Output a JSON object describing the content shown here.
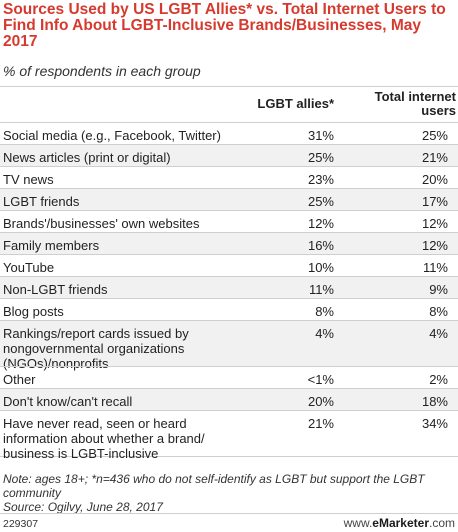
{
  "chart_data": {
    "type": "table",
    "title": "Sources Used by US LGBT Allies* vs. Total Internet Users to Find Info About LGBT-Inclusive Brands/Businesses, May 2017",
    "subtitle": "% of respondents in each group",
    "columns": [
      "LGBT allies*",
      "Total internet users"
    ],
    "rows": [
      {
        "label": "Social media (e.g., Facebook, Twitter)",
        "v1": "31%",
        "v2": "25%"
      },
      {
        "label": "News articles (print or digital)",
        "v1": "25%",
        "v2": "21%"
      },
      {
        "label": "TV news",
        "v1": "23%",
        "v2": "20%"
      },
      {
        "label": "LGBT friends",
        "v1": "25%",
        "v2": "17%"
      },
      {
        "label": "Brands'/businesses' own websites",
        "v1": "12%",
        "v2": "12%"
      },
      {
        "label": "Family members",
        "v1": "16%",
        "v2": "12%"
      },
      {
        "label": "YouTube",
        "v1": "10%",
        "v2": "11%"
      },
      {
        "label": "Non-LGBT friends",
        "v1": "11%",
        "v2": "9%"
      },
      {
        "label": "Blog posts",
        "v1": "8%",
        "v2": "8%"
      },
      {
        "label": "Rankings/report cards issued by nongovernmental organizations (NGOs)/nonprofits",
        "v1": "4%",
        "v2": "4%"
      },
      {
        "label": "Other",
        "v1": "<1%",
        "v2": "2%"
      },
      {
        "label": "Don't know/can't recall",
        "v1": "20%",
        "v2": "18%"
      },
      {
        "label": "Have never read, seen or heard information about whether a brand/ business is LGBT-inclusive",
        "v1": "21%",
        "v2": "34%"
      }
    ]
  },
  "footnote": "Note: ages 18+; *n=436 who do not self-identify as LGBT but support the LGBT community\nSource: Ogilvy, June 28, 2017",
  "footer": {
    "chart_id": "229307",
    "brand_prefix": "www.",
    "brand_name": "eMarketer",
    "brand_suffix": ".com"
  },
  "colors": {
    "title": "#d63a2e",
    "shade": "#f1f1f1",
    "rule": "#cfcfcf"
  }
}
